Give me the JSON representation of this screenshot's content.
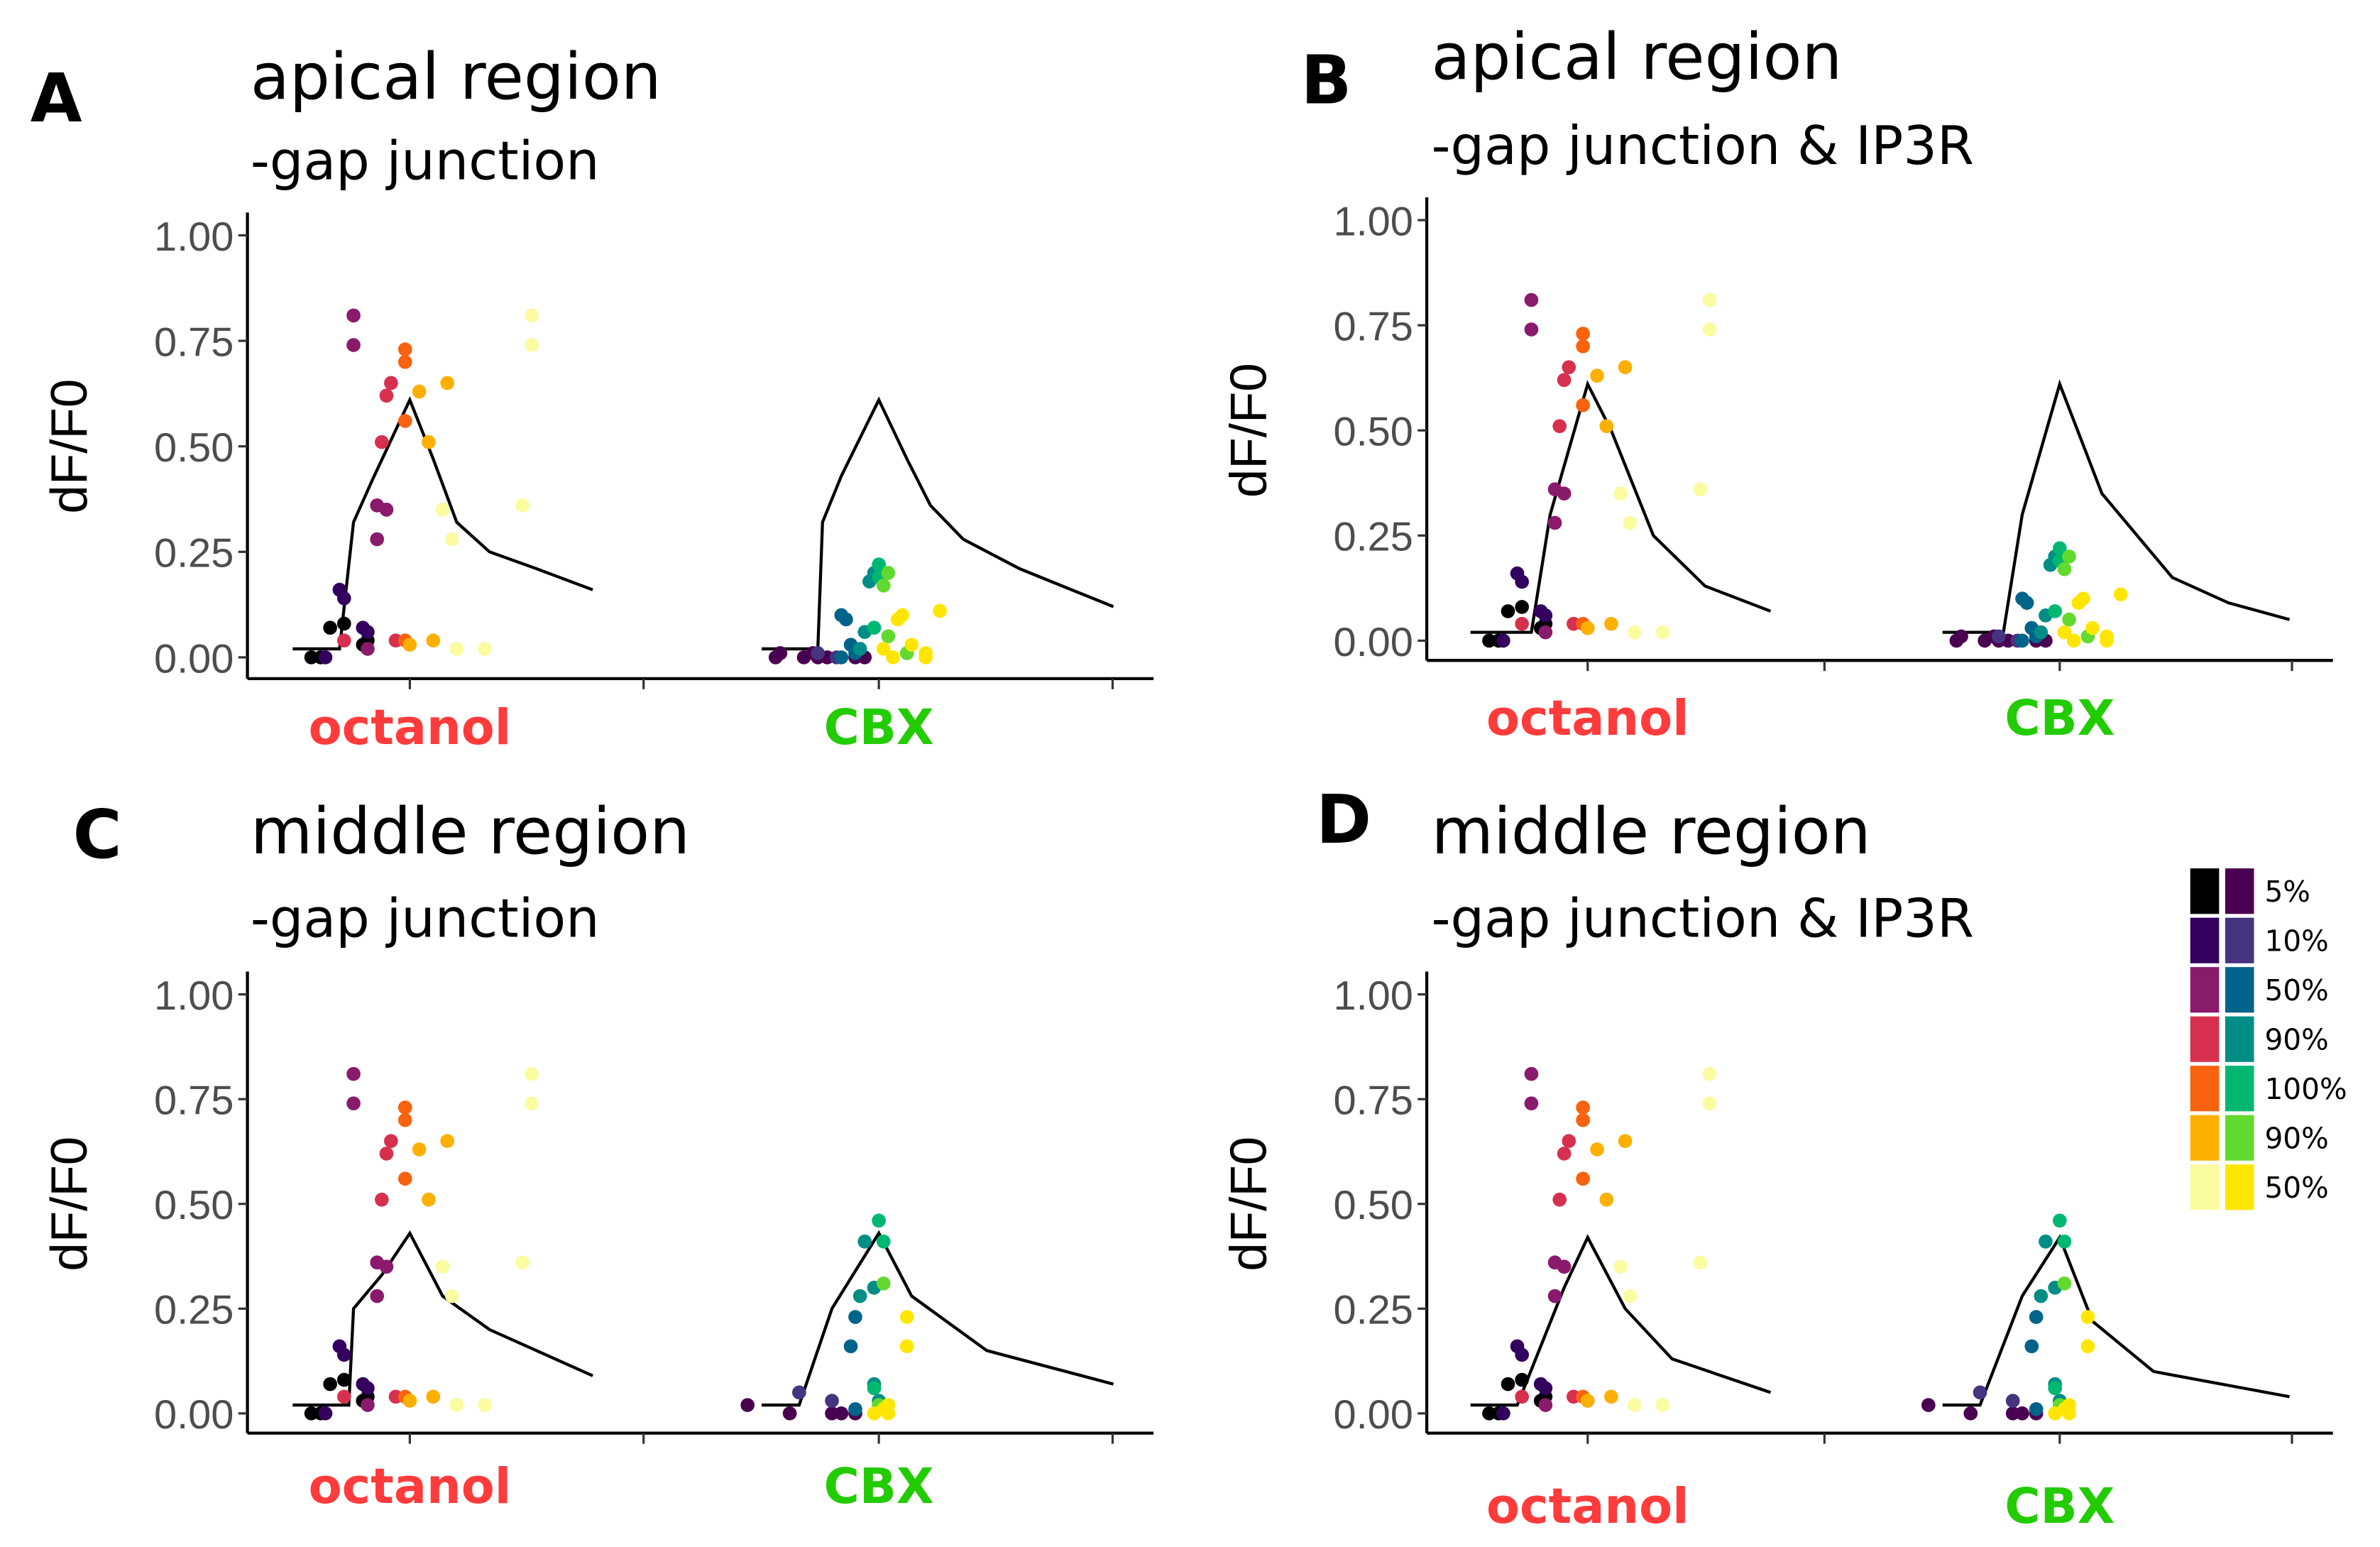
{
  "palette": {
    "octanol": [
      "#000000",
      "#33005e",
      "#8a1a6b",
      "#d7304f",
      "#f9620f",
      "#fdb000",
      "#fbfba0"
    ],
    "cbx": [
      "#4a0050",
      "#45347f",
      "#00648a",
      "#008d85",
      "#00b772",
      "#62d92e",
      "#ffe600"
    ]
  },
  "legend": {
    "labels": [
      "5%",
      "10%",
      "50%",
      "90%",
      "100%",
      "90%",
      "50%"
    ]
  },
  "chart_data": [
    {
      "type": "scatter",
      "letter": "A",
      "title": "apical region",
      "subtitle": "-gap junction",
      "ylabel": "dF/F0",
      "ylim": [
        0,
        1
      ],
      "yticks": [
        "0.00",
        "0.25",
        "0.50",
        "0.75",
        "1.00"
      ],
      "categories": [
        "octanol",
        "CBX"
      ],
      "category_colors": [
        "#ff3b3b",
        "#22cc00"
      ],
      "curves": [
        [
          [
            -0.25,
            0.02
          ],
          [
            -0.15,
            0.02
          ],
          [
            -0.12,
            0.32
          ],
          [
            -0.08,
            0.42
          ],
          [
            0,
            0.61
          ],
          [
            0.05,
            0.47
          ],
          [
            0.1,
            0.32
          ],
          [
            0.17,
            0.25
          ],
          [
            0.27,
            0.21
          ],
          [
            0.39,
            0.16
          ]
        ],
        [
          [
            -0.25,
            0.02
          ],
          [
            -0.13,
            0.02
          ],
          [
            -0.12,
            0.32
          ],
          [
            -0.08,
            0.43
          ],
          [
            0,
            0.61
          ],
          [
            0.06,
            0.47
          ],
          [
            0.11,
            0.36
          ],
          [
            0.18,
            0.28
          ],
          [
            0.3,
            0.21
          ],
          [
            0.5,
            0.12
          ]
        ]
      ],
      "points_set": [
        "octanol",
        "cbx_low"
      ]
    },
    {
      "type": "scatter",
      "letter": "B",
      "title": "apical region",
      "subtitle": "-gap junction & IP3R",
      "ylabel": "dF/F0",
      "ylim": [
        0,
        1
      ],
      "yticks": [
        "0.00",
        "0.25",
        "0.50",
        "0.75",
        "1.00"
      ],
      "categories": [
        "octanol",
        "CBX"
      ],
      "category_colors": [
        "#ff3b3b",
        "#22cc00"
      ],
      "curves": [
        [
          [
            -0.25,
            0.02
          ],
          [
            -0.12,
            0.02
          ],
          [
            -0.08,
            0.3
          ],
          [
            0,
            0.61
          ],
          [
            0.05,
            0.5
          ],
          [
            0.14,
            0.25
          ],
          [
            0.25,
            0.13
          ],
          [
            0.39,
            0.07
          ]
        ],
        [
          [
            -0.25,
            0.02
          ],
          [
            -0.12,
            0.02
          ],
          [
            -0.08,
            0.3
          ],
          [
            0,
            0.61
          ],
          [
            0.09,
            0.35
          ],
          [
            0.24,
            0.15
          ],
          [
            0.36,
            0.09
          ],
          [
            0.49,
            0.05
          ]
        ]
      ],
      "points_set": [
        "octanol",
        "cbx_low"
      ]
    },
    {
      "type": "scatter",
      "letter": "C",
      "title": "middle region",
      "subtitle": "-gap junction",
      "ylabel": "dF/F0",
      "ylim": [
        0,
        1
      ],
      "yticks": [
        "0.00",
        "0.25",
        "0.50",
        "0.75",
        "1.00"
      ],
      "categories": [
        "octanol",
        "CBX"
      ],
      "category_colors": [
        "#ff3b3b",
        "#22cc00"
      ],
      "curves": [
        [
          [
            -0.25,
            0.02
          ],
          [
            -0.13,
            0.02
          ],
          [
            -0.12,
            0.25
          ],
          [
            -0.06,
            0.33
          ],
          [
            0,
            0.43
          ],
          [
            0.07,
            0.28
          ],
          [
            0.17,
            0.2
          ],
          [
            0.39,
            0.09
          ]
        ],
        [
          [
            -0.25,
            0.02
          ],
          [
            -0.17,
            0.02
          ],
          [
            -0.1,
            0.25
          ],
          [
            0,
            0.43
          ],
          [
            0.07,
            0.28
          ],
          [
            0.23,
            0.15
          ],
          [
            0.5,
            0.07
          ]
        ]
      ],
      "points_set": [
        "octanol",
        "cbx_high"
      ]
    },
    {
      "type": "scatter",
      "letter": "D",
      "title": "middle region",
      "subtitle": "-gap junction & IP3R",
      "ylabel": "dF/F0",
      "ylim": [
        0,
        1
      ],
      "yticks": [
        "0.00",
        "0.25",
        "0.50",
        "0.75",
        "1.00"
      ],
      "categories": [
        "octanol",
        "CBX"
      ],
      "category_colors": [
        "#ff3b3b",
        "#22cc00"
      ],
      "curves": [
        [
          [
            -0.25,
            0.02
          ],
          [
            -0.15,
            0.02
          ],
          [
            -0.05,
            0.3
          ],
          [
            0,
            0.42
          ],
          [
            0.08,
            0.25
          ],
          [
            0.18,
            0.13
          ],
          [
            0.39,
            0.05
          ]
        ],
        [
          [
            -0.25,
            0.02
          ],
          [
            -0.17,
            0.02
          ],
          [
            -0.08,
            0.28
          ],
          [
            0,
            0.42
          ],
          [
            0.07,
            0.22
          ],
          [
            0.2,
            0.1
          ],
          [
            0.49,
            0.04
          ]
        ]
      ],
      "points_set": [
        "octanol",
        "cbx_high"
      ]
    }
  ],
  "point_sets": {
    "octanol": [
      [
        -0.21,
        0.0,
        0
      ],
      [
        -0.19,
        0.0,
        0
      ],
      [
        -0.17,
        0.07,
        0
      ],
      [
        -0.14,
        0.08,
        0
      ],
      [
        -0.1,
        0.03,
        0
      ],
      [
        -0.09,
        0.04,
        0
      ],
      [
        -0.18,
        0.0,
        1
      ],
      [
        -0.15,
        0.16,
        1
      ],
      [
        -0.14,
        0.14,
        1
      ],
      [
        -0.09,
        0.06,
        1
      ],
      [
        -0.1,
        0.07,
        1
      ],
      [
        -0.12,
        0.81,
        2
      ],
      [
        -0.12,
        0.74,
        2
      ],
      [
        -0.07,
        0.36,
        2
      ],
      [
        -0.05,
        0.35,
        2
      ],
      [
        -0.07,
        0.28,
        2
      ],
      [
        -0.09,
        0.02,
        2
      ],
      [
        -0.04,
        0.65,
        3
      ],
      [
        -0.05,
        0.62,
        3
      ],
      [
        -0.06,
        0.51,
        3
      ],
      [
        -0.14,
        0.04,
        3
      ],
      [
        -0.03,
        0.04,
        3
      ],
      [
        -0.01,
        0.73,
        4
      ],
      [
        -0.01,
        0.7,
        4
      ],
      [
        -0.01,
        0.56,
        4
      ],
      [
        -0.01,
        0.04,
        4
      ],
      [
        0.02,
        0.63,
        5
      ],
      [
        0.08,
        0.65,
        5
      ],
      [
        0.04,
        0.51,
        5
      ],
      [
        0.0,
        0.03,
        5
      ],
      [
        0.05,
        0.04,
        5
      ],
      [
        0.26,
        0.81,
        6
      ],
      [
        0.26,
        0.74,
        6
      ],
      [
        0.24,
        0.36,
        6
      ],
      [
        0.07,
        0.35,
        6
      ],
      [
        0.09,
        0.28,
        6
      ],
      [
        0.1,
        0.02,
        6
      ],
      [
        0.16,
        0.02,
        6
      ]
    ],
    "cbx_low": [
      [
        -0.22,
        0.0,
        0
      ],
      [
        -0.21,
        0.01,
        0
      ],
      [
        -0.16,
        0.0,
        0
      ],
      [
        -0.14,
        0.01,
        0
      ],
      [
        -0.13,
        0.0,
        0
      ],
      [
        -0.11,
        0.0,
        0
      ],
      [
        -0.05,
        0.0,
        0
      ],
      [
        -0.03,
        0.0,
        0
      ],
      [
        -0.13,
        0.01,
        1
      ],
      [
        -0.09,
        0.0,
        1
      ],
      [
        -0.08,
        0.1,
        2
      ],
      [
        -0.07,
        0.09,
        2
      ],
      [
        -0.06,
        0.03,
        2
      ],
      [
        -0.08,
        0.0,
        2
      ],
      [
        -0.05,
        0.01,
        2
      ],
      [
        -0.02,
        0.18,
        3
      ],
      [
        -0.01,
        0.2,
        3
      ],
      [
        -0.03,
        0.06,
        3
      ],
      [
        -0.04,
        0.02,
        3
      ],
      [
        0.0,
        0.22,
        4
      ],
      [
        0.0,
        0.19,
        4
      ],
      [
        -0.01,
        0.07,
        4
      ],
      [
        0.02,
        0.2,
        5
      ],
      [
        0.01,
        0.17,
        5
      ],
      [
        0.02,
        0.05,
        5
      ],
      [
        0.06,
        0.01,
        5
      ],
      [
        0.01,
        0.02,
        6
      ],
      [
        0.03,
        0.0,
        6
      ],
      [
        0.05,
        0.1,
        6
      ],
      [
        0.04,
        0.09,
        6
      ],
      [
        0.07,
        0.03,
        6
      ],
      [
        0.1,
        0.01,
        6
      ],
      [
        0.13,
        0.11,
        6
      ],
      [
        0.1,
        0.0,
        6
      ]
    ],
    "cbx_high": [
      [
        -0.28,
        0.02,
        0
      ],
      [
        -0.19,
        0.0,
        0
      ],
      [
        -0.1,
        0.0,
        0
      ],
      [
        -0.08,
        0.0,
        0
      ],
      [
        -0.05,
        0.0,
        0
      ],
      [
        -0.17,
        0.05,
        1
      ],
      [
        -0.1,
        0.03,
        1
      ],
      [
        -0.06,
        0.16,
        2
      ],
      [
        -0.05,
        0.23,
        2
      ],
      [
        -0.05,
        0.01,
        2
      ],
      [
        -0.04,
        0.28,
        3
      ],
      [
        -0.03,
        0.41,
        3
      ],
      [
        -0.01,
        0.3,
        3
      ],
      [
        0.0,
        0.03,
        3
      ],
      [
        -0.01,
        0.07,
        3
      ],
      [
        0.0,
        0.46,
        4
      ],
      [
        0.01,
        0.41,
        4
      ],
      [
        -0.01,
        0.06,
        4
      ],
      [
        0.01,
        0.31,
        5
      ],
      [
        0.0,
        0.02,
        5
      ],
      [
        0.01,
        0.01,
        6
      ],
      [
        0.02,
        0.02,
        6
      ],
      [
        0.06,
        0.16,
        6
      ],
      [
        0.06,
        0.23,
        6
      ],
      [
        -0.01,
        0.0,
        6
      ],
      [
        0.02,
        0.0,
        6
      ]
    ]
  }
}
